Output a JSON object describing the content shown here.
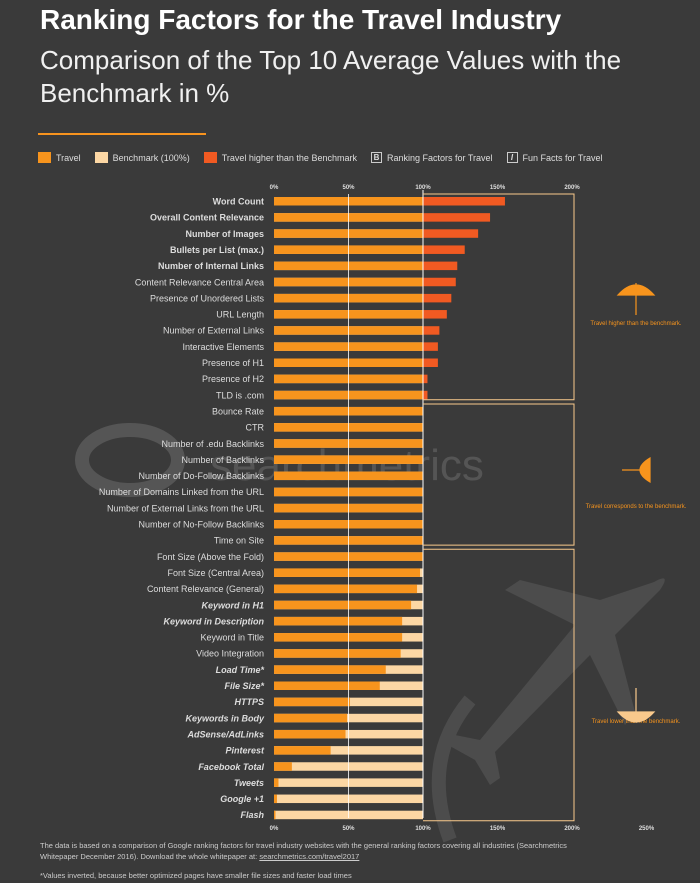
{
  "header": {
    "title": "Ranking Factors for the Travel Industry",
    "subtitle": "Comparison of the Top 10 Average Values with the Benchmark in %"
  },
  "legend": {
    "travel": "Travel",
    "benchmark": "Benchmark (100%)",
    "higher": "Travel higher than the Benchmark",
    "ranking_box": "B",
    "ranking": "Ranking Factors for Travel",
    "fun_box": "I",
    "fun": "Fun Facts for Travel"
  },
  "colors": {
    "travel": "#f7941d",
    "benchmark": "#fcd7a4",
    "higher": "#f15a22",
    "text": "#dddddd",
    "bg": "#3a3a3a"
  },
  "watermark": "searchmetrics",
  "groups": [
    {
      "label": "Travel higher than the benchmark.",
      "icon": "umbrella-up-icon"
    },
    {
      "label": "Travel corresponds to the benchmark.",
      "icon": "umbrella-side-icon"
    },
    {
      "label": "Travel lower than the benchmark.",
      "icon": "umbrella-down-icon"
    }
  ],
  "chart_data": {
    "type": "bar",
    "orientation": "horizontal",
    "xlim": [
      0,
      250
    ],
    "ticks_top": [
      "0%",
      "50%",
      "100%",
      "150%",
      "200%"
    ],
    "ticks_bottom": [
      "0%",
      "50%",
      "100%",
      "150%",
      "200%",
      "250%"
    ],
    "series": [
      {
        "name": "Travel",
        "color": "#f7941d"
      },
      {
        "name": "Benchmark (100%)",
        "color": "#fcd7a4"
      },
      {
        "name": "Travel higher than the Benchmark",
        "color": "#f15a22"
      }
    ],
    "bars": [
      {
        "label": "Word Count",
        "value": 155,
        "style": "bold"
      },
      {
        "label": "Overall Content Relevance",
        "value": 145,
        "style": "bold"
      },
      {
        "label": "Number of Images",
        "value": 137,
        "style": "bold"
      },
      {
        "label": "Bullets per List (max.)",
        "value": 128,
        "style": "bold"
      },
      {
        "label": "Number of Internal Links",
        "value": 123,
        "style": "bold"
      },
      {
        "label": "Content Relevance Central Area",
        "value": 122,
        "style": "normal"
      },
      {
        "label": "Presence of Unordered Lists",
        "value": 119,
        "style": "normal"
      },
      {
        "label": "URL Length",
        "value": 116,
        "style": "normal"
      },
      {
        "label": "Number of External Links",
        "value": 111,
        "style": "normal"
      },
      {
        "label": "Interactive Elements",
        "value": 110,
        "style": "normal"
      },
      {
        "label": "Presence of H1",
        "value": 110,
        "style": "normal"
      },
      {
        "label": "Presence of H2",
        "value": 103,
        "style": "normal"
      },
      {
        "label": "TLD is .com",
        "value": 103,
        "style": "normal"
      },
      {
        "label": "Bounce Rate",
        "value": 100,
        "style": "normal"
      },
      {
        "label": "CTR",
        "value": 100,
        "style": "normal"
      },
      {
        "label": "Number of .edu Backlinks",
        "value": 100,
        "style": "normal"
      },
      {
        "label": "Number of Backlinks",
        "value": 100,
        "style": "normal"
      },
      {
        "label": "Number of Do-Follow Backlinks",
        "value": 100,
        "style": "normal"
      },
      {
        "label": "Number of Domains Linked from the URL",
        "value": 100,
        "style": "normal"
      },
      {
        "label": "Number of External Links from the URL",
        "value": 100,
        "style": "normal"
      },
      {
        "label": "Number of No-Follow Backlinks",
        "value": 100,
        "style": "normal"
      },
      {
        "label": "Time on Site",
        "value": 100,
        "style": "normal"
      },
      {
        "label": "Font Size (Above the Fold)",
        "value": 100,
        "style": "normal"
      },
      {
        "label": "Font Size (Central Area)",
        "value": 98,
        "style": "normal"
      },
      {
        "label": "Content Relevance (General)",
        "value": 96,
        "style": "normal"
      },
      {
        "label": "Keyword in H1",
        "value": 92,
        "style": "italic"
      },
      {
        "label": "Keyword in Description",
        "value": 86,
        "style": "italic"
      },
      {
        "label": "Keyword in Title",
        "value": 86,
        "style": "normal"
      },
      {
        "label": "Video Integration",
        "value": 85,
        "style": "normal"
      },
      {
        "label": "Load Time*",
        "value": 75,
        "style": "italic"
      },
      {
        "label": "File Size*",
        "value": 71,
        "style": "italic"
      },
      {
        "label": "HTTPS",
        "value": 51,
        "style": "italic"
      },
      {
        "label": "Keywords in Body",
        "value": 49,
        "style": "italic"
      },
      {
        "label": "AdSense/AdLinks",
        "value": 48,
        "style": "italic"
      },
      {
        "label": "Pinterest",
        "value": 38,
        "style": "italic"
      },
      {
        "label": "Facebook Total",
        "value": 12,
        "style": "italic"
      },
      {
        "label": "Tweets",
        "value": 3,
        "style": "italic"
      },
      {
        "label": "Google +1",
        "value": 2,
        "style": "italic"
      },
      {
        "label": "Flash",
        "value": 1,
        "style": "italic"
      }
    ]
  },
  "footer": {
    "note1": "The data is based on a comparison of Google ranking factors for travel industry websites with the general ranking factors covering all industries (Searchmetrics Whitepaper December 2016). Download the whole whitepaper at:",
    "link": "searchmetrics.com/travel2017",
    "note2": "*Values inverted, because better optimized pages have smaller file sizes and faster load times"
  }
}
